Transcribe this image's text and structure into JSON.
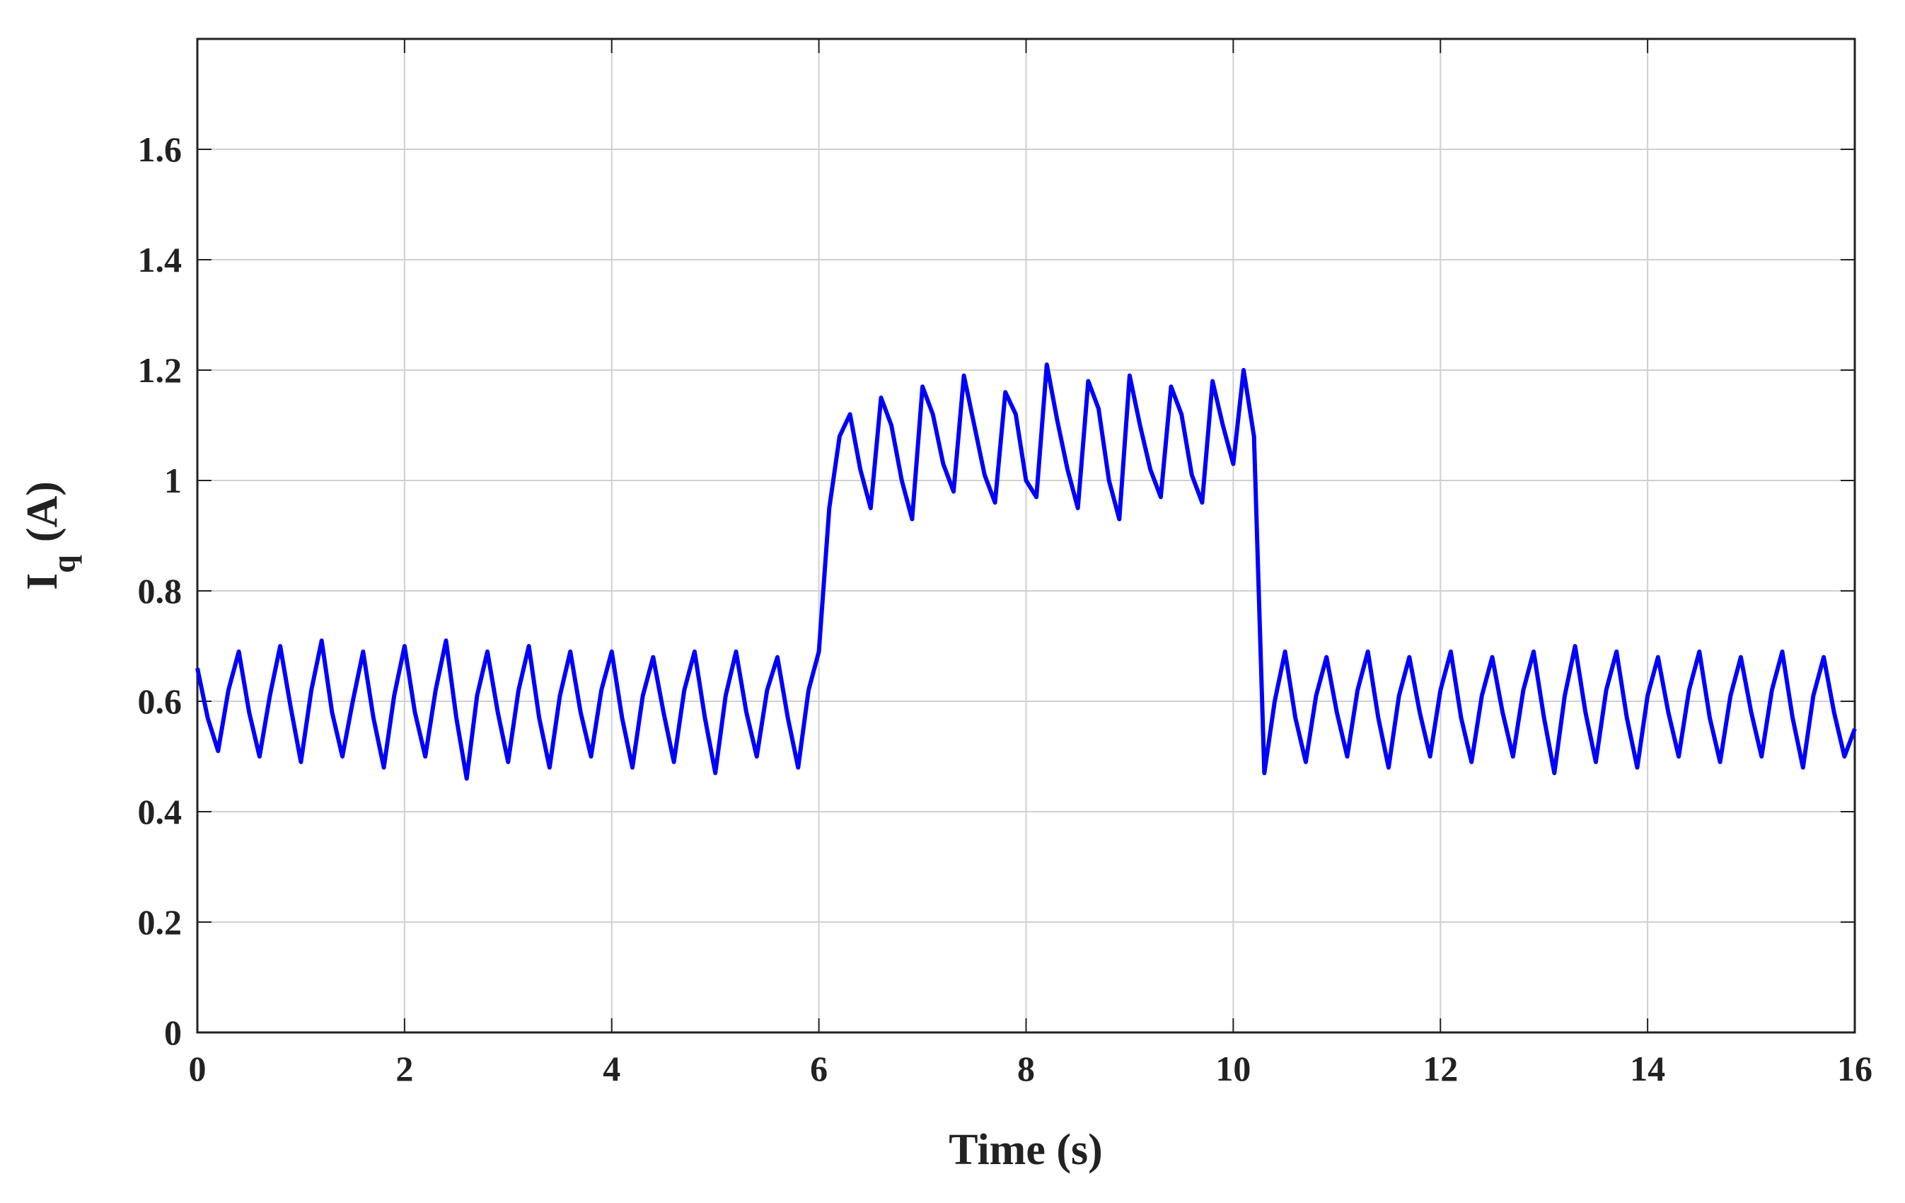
{
  "chart_data": {
    "type": "line",
    "xlabel": "Time (s)",
    "ylabel": [
      "I",
      "q",
      "(A)"
    ],
    "xlim": [
      0,
      16
    ],
    "ylim": [
      0,
      1.8
    ],
    "xticks": [
      0,
      2,
      4,
      6,
      8,
      10,
      12,
      14,
      16
    ],
    "yticks": [
      0,
      0.2,
      0.4,
      0.6,
      0.8,
      1,
      1.2,
      1.4,
      1.6
    ],
    "grid": true,
    "x": [
      0,
      0.1,
      0.2,
      0.3,
      0.4,
      0.5,
      0.6,
      0.7,
      0.8,
      0.9,
      1,
      1.1,
      1.2,
      1.3,
      1.4,
      1.5,
      1.6,
      1.7,
      1.8,
      1.9,
      2,
      2.1,
      2.2,
      2.3,
      2.4,
      2.5,
      2.6,
      2.7,
      2.8,
      2.9,
      3,
      3.1,
      3.2,
      3.3,
      3.4,
      3.5,
      3.6,
      3.7,
      3.8,
      3.9,
      4,
      4.1,
      4.2,
      4.3,
      4.4,
      4.5,
      4.6,
      4.7,
      4.8,
      4.9,
      5,
      5.1,
      5.2,
      5.3,
      5.4,
      5.5,
      5.6,
      5.7,
      5.8,
      5.9,
      6,
      6.1,
      6.2,
      6.3,
      6.4,
      6.5,
      6.6,
      6.7,
      6.8,
      6.9,
      7,
      7.1,
      7.2,
      7.3,
      7.4,
      7.5,
      7.6,
      7.7,
      7.8,
      7.9,
      8,
      8.1,
      8.2,
      8.3,
      8.4,
      8.5,
      8.6,
      8.7,
      8.8,
      8.9,
      9,
      9.1,
      9.2,
      9.3,
      9.4,
      9.5,
      9.6,
      9.7,
      9.8,
      9.9,
      10,
      10.1,
      10.2,
      10.3,
      10.4,
      10.5,
      10.6,
      10.7,
      10.8,
      10.9,
      11,
      11.1,
      11.2,
      11.3,
      11.4,
      11.5,
      11.6,
      11.7,
      11.8,
      11.9,
      12,
      12.1,
      12.2,
      12.3,
      12.4,
      12.5,
      12.6,
      12.7,
      12.8,
      12.9,
      13,
      13.1,
      13.2,
      13.3,
      13.4,
      13.5,
      13.6,
      13.7,
      13.8,
      13.9,
      14,
      14.1,
      14.2,
      14.3,
      14.4,
      14.5,
      14.6,
      14.7,
      14.8,
      14.9,
      15,
      15.1,
      15.2,
      15.3,
      15.4,
      15.5,
      15.6,
      15.7,
      15.8,
      15.9,
      16
    ],
    "series": [
      {
        "color": "#0000ff",
        "values": [
          0.66,
          0.57,
          0.51,
          0.62,
          0.69,
          0.58,
          0.5,
          0.61,
          0.7,
          0.59,
          0.49,
          0.62,
          0.71,
          0.58,
          0.5,
          0.6,
          0.69,
          0.57,
          0.48,
          0.61,
          0.7,
          0.58,
          0.5,
          0.62,
          0.71,
          0.57,
          0.46,
          0.61,
          0.69,
          0.58,
          0.49,
          0.62,
          0.7,
          0.57,
          0.48,
          0.61,
          0.69,
          0.58,
          0.5,
          0.62,
          0.69,
          0.57,
          0.48,
          0.61,
          0.68,
          0.58,
          0.49,
          0.62,
          0.69,
          0.57,
          0.47,
          0.61,
          0.69,
          0.58,
          0.5,
          0.62,
          0.68,
          0.57,
          0.48,
          0.62,
          0.69,
          0.95,
          1.08,
          1.12,
          1.02,
          0.95,
          1.15,
          1.1,
          1.0,
          0.93,
          1.17,
          1.12,
          1.03,
          0.98,
          1.19,
          1.1,
          1.01,
          0.96,
          1.16,
          1.12,
          1.0,
          0.97,
          1.21,
          1.11,
          1.02,
          0.95,
          1.18,
          1.13,
          1.0,
          0.93,
          1.19,
          1.1,
          1.02,
          0.97,
          1.17,
          1.12,
          1.01,
          0.96,
          1.18,
          1.1,
          1.03,
          1.2,
          1.08,
          0.47,
          0.6,
          0.69,
          0.57,
          0.49,
          0.61,
          0.68,
          0.58,
          0.5,
          0.62,
          0.69,
          0.57,
          0.48,
          0.61,
          0.68,
          0.58,
          0.5,
          0.62,
          0.69,
          0.57,
          0.49,
          0.61,
          0.68,
          0.58,
          0.5,
          0.62,
          0.69,
          0.57,
          0.47,
          0.61,
          0.7,
          0.58,
          0.49,
          0.62,
          0.69,
          0.57,
          0.48,
          0.61,
          0.68,
          0.58,
          0.5,
          0.62,
          0.69,
          0.57,
          0.49,
          0.61,
          0.68,
          0.58,
          0.5,
          0.62,
          0.69,
          0.57,
          0.48,
          0.61,
          0.68,
          0.58,
          0.5,
          0.55
        ]
      }
    ]
  }
}
